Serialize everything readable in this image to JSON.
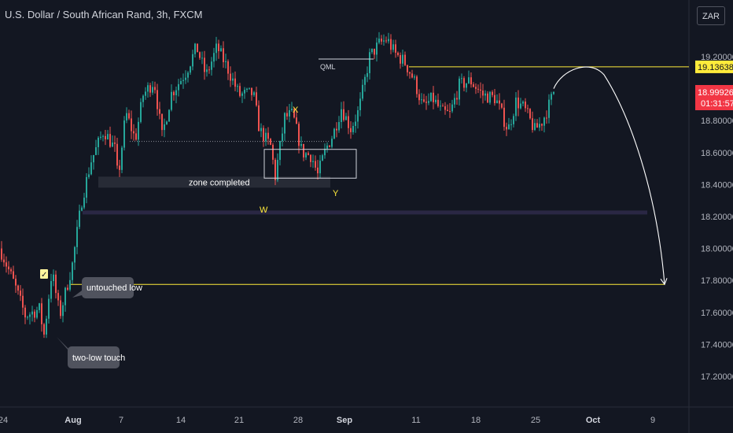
{
  "header": {
    "title": "U.S. Dollar / South African Rand, 3h, FXCM",
    "currency_button": "ZAR"
  },
  "chart_data": {
    "type": "candlestick",
    "title": "U.S. Dollar / South African Rand, 3h, FXCM",
    "ylim": [
      17.15,
      19.4
    ],
    "y_ticks": [
      "19.20000",
      "19.00000",
      "18.80000",
      "18.60000",
      "18.40000",
      "18.20000",
      "18.00000",
      "17.80000",
      "17.60000",
      "17.40000",
      "17.20000"
    ],
    "y_tick_values": [
      19.2,
      19.0,
      18.8,
      18.6,
      18.4,
      18.2,
      18.0,
      17.8,
      17.6,
      17.4,
      17.2
    ],
    "x_ticks": [
      "24",
      "Aug",
      "7",
      "14",
      "21",
      "28",
      "Sep",
      "11",
      "18",
      "25",
      "Oct",
      "9"
    ],
    "price_path": [
      [
        0,
        18.0
      ],
      [
        18,
        17.78
      ],
      [
        32,
        17.58
      ],
      [
        50,
        17.62
      ],
      [
        56,
        17.46
      ],
      [
        66,
        17.86
      ],
      [
        76,
        17.58
      ],
      [
        92,
        17.9
      ],
      [
        104,
        18.3
      ],
      [
        116,
        18.55
      ],
      [
        132,
        18.74
      ],
      [
        146,
        18.62
      ],
      [
        150,
        18.43
      ],
      [
        160,
        18.85
      ],
      [
        172,
        18.68
      ],
      [
        182,
        18.96
      ],
      [
        196,
        19.05
      ],
      [
        206,
        18.7
      ],
      [
        218,
        18.97
      ],
      [
        236,
        19.1
      ],
      [
        250,
        19.26
      ],
      [
        262,
        19.08
      ],
      [
        276,
        19.26
      ],
      [
        290,
        19.12
      ],
      [
        304,
        18.96
      ],
      [
        322,
        18.97
      ],
      [
        330,
        18.74
      ],
      [
        344,
        18.64
      ],
      [
        350,
        18.45
      ],
      [
        362,
        18.82
      ],
      [
        372,
        18.84
      ],
      [
        384,
        18.6
      ],
      [
        396,
        18.58
      ],
      [
        404,
        18.46
      ],
      [
        414,
        18.62
      ],
      [
        424,
        18.72
      ],
      [
        434,
        18.88
      ],
      [
        446,
        18.75
      ],
      [
        456,
        18.86
      ],
      [
        470,
        19.2
      ],
      [
        482,
        19.28
      ],
      [
        492,
        19.31
      ],
      [
        502,
        19.22
      ],
      [
        514,
        19.17
      ],
      [
        526,
        19.06
      ],
      [
        538,
        18.88
      ],
      [
        550,
        18.94
      ],
      [
        562,
        18.85
      ],
      [
        572,
        18.84
      ],
      [
        584,
        19.02
      ],
      [
        598,
        19.05
      ],
      [
        614,
        18.96
      ],
      [
        630,
        18.94
      ],
      [
        646,
        18.74
      ],
      [
        656,
        18.92
      ],
      [
        666,
        18.88
      ],
      [
        680,
        18.74
      ],
      [
        690,
        18.8
      ],
      [
        700,
        18.92
      ],
      [
        705,
        19.0
      ]
    ],
    "last_price": "18.99926",
    "countdown": "01:31:57",
    "qml_level": "19.13638",
    "annotations": {
      "qml": "QML",
      "zone": "zone completed",
      "w": "W",
      "x": "X",
      "y": "Y",
      "untouched": "untouched low",
      "two_low": "two-low touch",
      "check": "✓"
    },
    "levels": {
      "qml": 19.13638,
      "dotted": 18.67,
      "zone": 18.415,
      "purple": 18.225,
      "target": 17.775
    },
    "projection_target": 17.775,
    "grid": false,
    "colors": {
      "background": "#131722",
      "up": "#26a69a",
      "down": "#ef5350",
      "level": "#ffeb3b",
      "projection": "#ffffff",
      "purple_zone": "#2a2744",
      "last_price_tag": "#f23645"
    }
  }
}
